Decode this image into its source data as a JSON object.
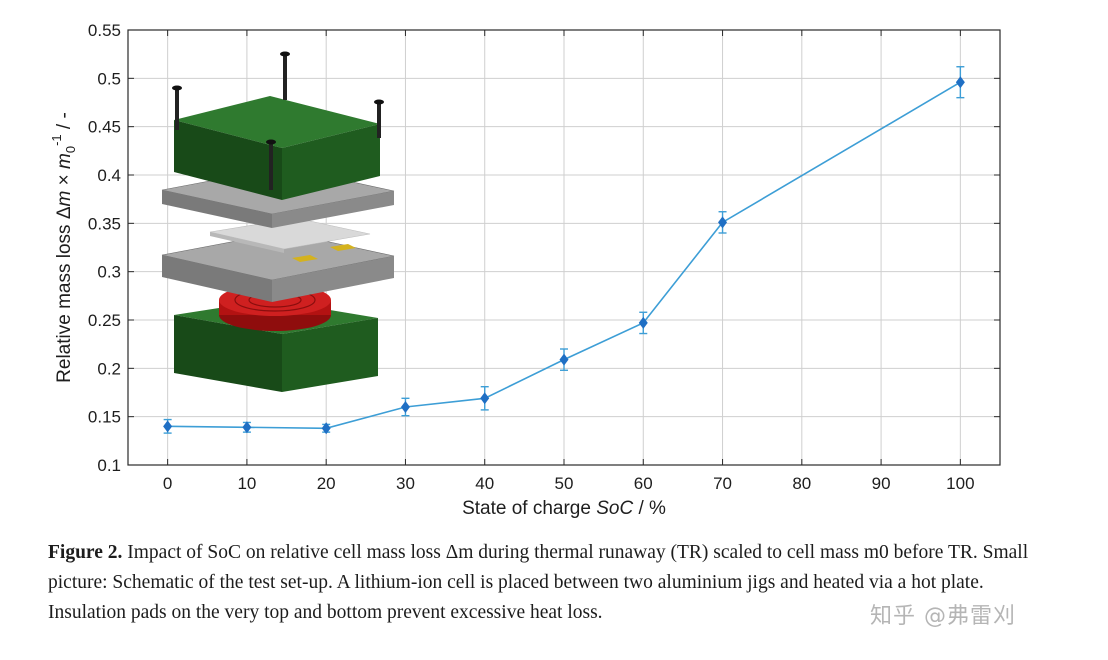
{
  "chart_data": {
    "type": "line",
    "x": [
      0,
      10,
      20,
      30,
      40,
      50,
      60,
      70,
      100
    ],
    "y": [
      0.14,
      0.139,
      0.138,
      0.16,
      0.169,
      0.209,
      0.247,
      0.351,
      0.496
    ],
    "error": [
      0.007,
      0.005,
      0.004,
      0.009,
      0.012,
      0.011,
      0.011,
      0.011,
      0.016
    ],
    "xlim": [
      -5,
      105
    ],
    "ylim": [
      0.1,
      0.55
    ],
    "xticks": [
      "0",
      "10",
      "20",
      "30",
      "40",
      "50",
      "60",
      "70",
      "80",
      "90",
      "100"
    ],
    "yticks": [
      "0.1",
      "0.15",
      "0.2",
      "0.25",
      "0.3",
      "0.35",
      "0.4",
      "0.45",
      "0.5",
      "0.55"
    ],
    "xlabel_prefix": "State of charge ",
    "xlabel_italic": "SoC",
    "xlabel_suffix": " / %",
    "ylabel_prefix": "Relative mass loss ",
    "ylabel_delta": "Δ",
    "ylabel_m": "m",
    "ylabel_times": " × ",
    "ylabel_m0": "m",
    "ylabel_sub": "0",
    "ylabel_sup": "-1",
    "ylabel_suffix": " / -",
    "grid": true,
    "colors": {
      "line": "#3d9ed6",
      "marker": "#1f6fc4",
      "grid": "#cfcfcf"
    }
  },
  "caption": {
    "label": "Figure 2.",
    "text": " Impact of SoC on relative cell mass loss Δm during thermal runaway (TR) scaled to cell mass m0 before TR. Small picture: Schematic of the test set-up. A lithium-ion cell is placed between two aluminium jigs and heated via a hot plate. Insulation pads on the very top and bottom prevent excessive heat loss."
  },
  "watermark": "知乎 @弗雷刈",
  "inset": {
    "colors": {
      "pad": "#1e5c1e",
      "plate": "#8a8a8a",
      "cell": "#d9d9d9",
      "tab": "#d4b21e",
      "heater": "#b31212",
      "bolt": "#222222"
    }
  }
}
